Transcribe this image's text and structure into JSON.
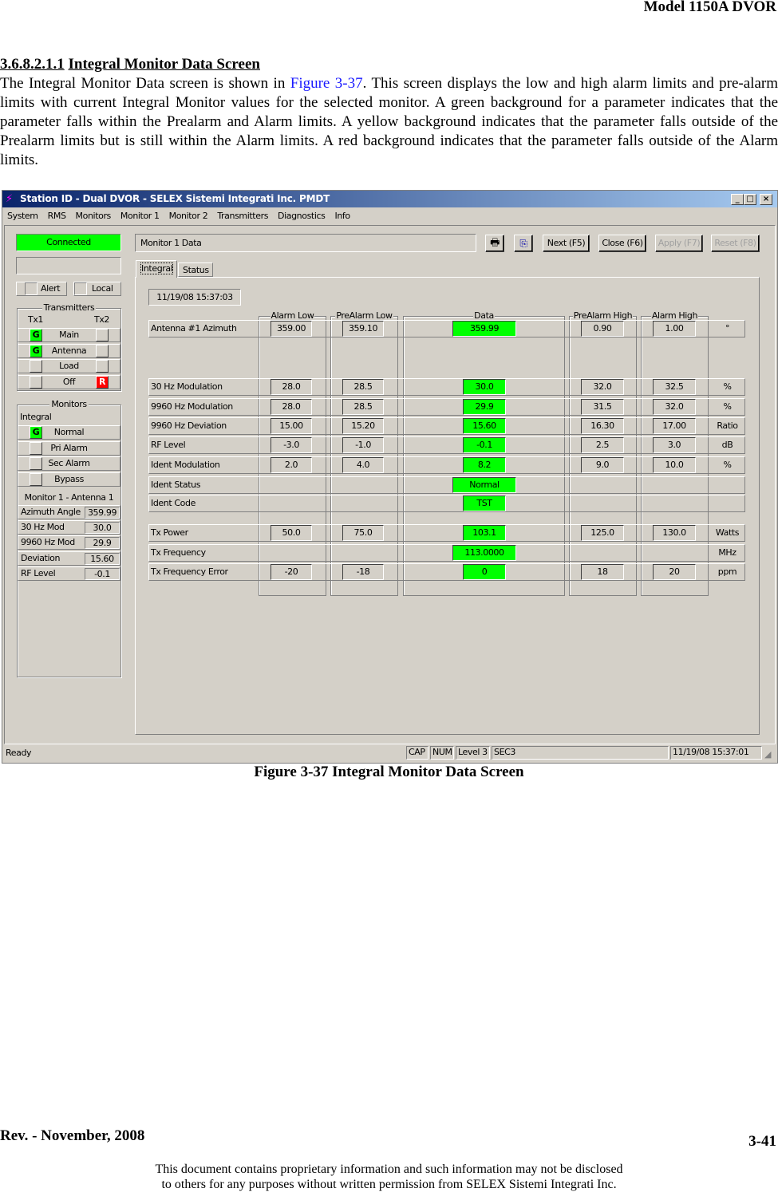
{
  "document": {
    "header": "Model 1150A DVOR",
    "section_number": "3.6.8.2.1.1",
    "section_title": "Integral Monitor Data Screen",
    "para_before_link": "The Integral Monitor Data screen is shown in ",
    "para_link": "Figure 3-37",
    "para_after_link": ". This screen displays the low and high alarm limits and pre-alarm limits with current Integral Monitor values for the selected monitor. A green background for a parameter indicates that the parameter falls within the Prealarm and Alarm limits. A yellow background indicates that the parameter falls outside of the Prealarm limits but is still within the Alarm limits. A red background indicates that the parameter falls outside of the Alarm limits.",
    "caption": "Figure 3-37  Integral Monitor Data Screen",
    "revision": "Rev. -  November, 2008",
    "page_number": "3-41",
    "disclaimer_line1": "This document contains proprietary information and such information may not be disclosed",
    "disclaimer_line2": "to others for any purposes without written permission from SELEX Sistemi Integrati Inc."
  },
  "window": {
    "title": "Station ID - Dual DVOR - SELEX Sistemi Integrati Inc. PMDT",
    "menu": [
      "System",
      "RMS",
      "Monitors",
      "Monitor 1",
      "Monitor 2",
      "Transmitters",
      "Diagnostics",
      "Info"
    ],
    "connection_status": "Connected",
    "alert_label": "Alert",
    "local_label": "Local",
    "transmitters": {
      "title": "Transmitters",
      "tx1": "Tx1",
      "tx2": "Tx2",
      "rows": [
        {
          "label": "Main",
          "tx1": "G",
          "tx2": ""
        },
        {
          "label": "Antenna",
          "tx1": "G",
          "tx2": ""
        },
        {
          "label": "Load",
          "tx1": "",
          "tx2": ""
        },
        {
          "label": "Off",
          "tx1": "",
          "tx2": "R"
        }
      ]
    },
    "monitors": {
      "title": "Monitors",
      "subtitle": "Integral",
      "rows": [
        {
          "label": "Normal",
          "ind": "G"
        },
        {
          "label": "Pri Alarm",
          "ind": ""
        },
        {
          "label": "Sec Alarm",
          "ind": ""
        },
        {
          "label": "Bypass",
          "ind": ""
        }
      ],
      "monitor_label": "Monitor 1 - Antenna 1",
      "values": [
        {
          "label": "Azimuth Angle",
          "value": "359.99"
        },
        {
          "label": "30 Hz Mod",
          "value": "30.0"
        },
        {
          "label": "9960 Hz Mod",
          "value": "29.9"
        },
        {
          "label": "Deviation",
          "value": "15.60"
        },
        {
          "label": "RF Level",
          "value": "-0.1"
        }
      ]
    },
    "panel_title": "Monitor 1 Data",
    "toolbar": {
      "print_icon": "printer-icon",
      "copy_icon": "copy-icon",
      "next": "Next (F5)",
      "close": "Close (F6)",
      "apply": "Apply (F7)",
      "reset": "Reset (F8)"
    },
    "tabs": [
      "Integral",
      "Status"
    ],
    "active_tab": "Integral",
    "timestamp": "11/19/08 15:37:03",
    "columns": [
      "Alarm Low",
      "PreAlarm Low",
      "Data",
      "PreAlarm High",
      "Alarm High"
    ],
    "rows": [
      {
        "label": "Antenna #1 Azimuth",
        "alarm_low": "359.00",
        "prealarm_low": "359.10",
        "data": "359.99",
        "prealarm_high": "0.90",
        "alarm_high": "1.00",
        "unit": "°"
      },
      {
        "label": "30 Hz Modulation",
        "alarm_low": "28.0",
        "prealarm_low": "28.5",
        "data": "30.0",
        "prealarm_high": "32.0",
        "alarm_high": "32.5",
        "unit": "%"
      },
      {
        "label": "9960 Hz Modulation",
        "alarm_low": "28.0",
        "prealarm_low": "28.5",
        "data": "29.9",
        "prealarm_high": "31.5",
        "alarm_high": "32.0",
        "unit": "%"
      },
      {
        "label": "9960 Hz Deviation",
        "alarm_low": "15.00",
        "prealarm_low": "15.20",
        "data": "15.60",
        "prealarm_high": "16.30",
        "alarm_high": "17.00",
        "unit": "Ratio"
      },
      {
        "label": "RF Level",
        "alarm_low": "-3.0",
        "prealarm_low": "-1.0",
        "data": "-0.1",
        "prealarm_high": "2.5",
        "alarm_high": "3.0",
        "unit": "dB"
      },
      {
        "label": "Ident Modulation",
        "alarm_low": "2.0",
        "prealarm_low": "4.0",
        "data": "8.2",
        "prealarm_high": "9.0",
        "alarm_high": "10.0",
        "unit": "%"
      },
      {
        "label": "Ident Status",
        "alarm_low": "",
        "prealarm_low": "",
        "data": "Normal",
        "prealarm_high": "",
        "alarm_high": "",
        "unit": ""
      },
      {
        "label": "Ident Code",
        "alarm_low": "",
        "prealarm_low": "",
        "data": "TST",
        "prealarm_high": "",
        "alarm_high": "",
        "unit": ""
      },
      {
        "label": "Tx Power",
        "alarm_low": "50.0",
        "prealarm_low": "75.0",
        "data": "103.1",
        "prealarm_high": "125.0",
        "alarm_high": "130.0",
        "unit": "Watts"
      },
      {
        "label": "Tx Frequency",
        "alarm_low": "",
        "prealarm_low": "",
        "data": "113.0000",
        "prealarm_high": "",
        "alarm_high": "",
        "unit": "MHz"
      },
      {
        "label": "Tx Frequency Error",
        "alarm_low": "-20",
        "prealarm_low": "-18",
        "data": "0",
        "prealarm_high": "18",
        "alarm_high": "20",
        "unit": "ppm"
      }
    ],
    "status_bar": {
      "status": "Ready",
      "cap": "CAP",
      "num": "NUM",
      "level": "Level 3",
      "sec": "SEC3",
      "time": "11/19/08 15:37:01"
    },
    "colors": {
      "ok_green": "#00ff00",
      "alarm_red": "#ff0000",
      "title_blue": "#0a246a",
      "face": "#d4d0c8"
    }
  }
}
